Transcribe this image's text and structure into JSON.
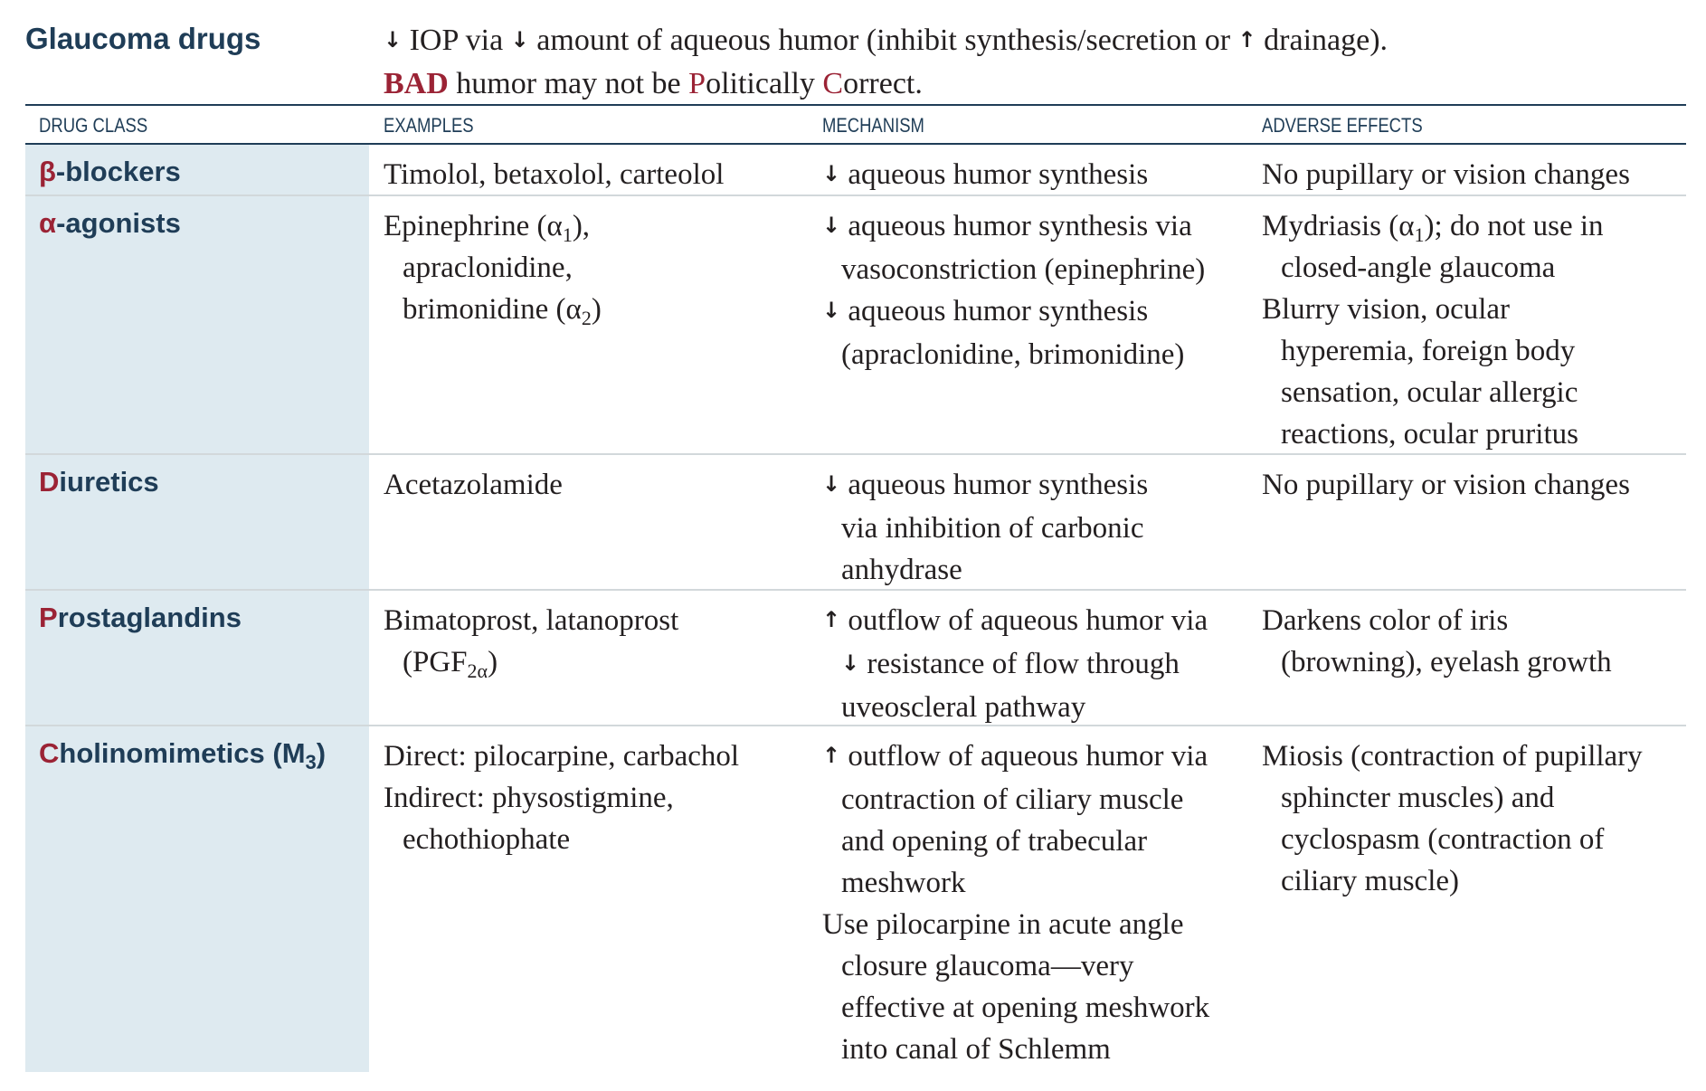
{
  "header": {
    "title": "Glaucoma drugs",
    "intro_line1": {
      "arrow_1": "↓",
      "text_1": " IOP via ",
      "arrow_2": "↓",
      "text_2": " amount of aqueous humor (inhibit synthesis/secretion or ",
      "arrow_3": "↑",
      "text_3": " drainage)."
    },
    "mnemonic": {
      "part1": "BAD",
      "part2": " humor may not be ",
      "part3": "P",
      "part4": "olitically ",
      "part5": "C",
      "part6": "orrect."
    }
  },
  "table": {
    "headers": {
      "drug_class": "DRUG CLASS",
      "examples": "EXAMPLES",
      "mechanism": "MECHANISM",
      "adverse_effects": "ADVERSE EFFECTS"
    },
    "rows": [
      {
        "cls": {
          "initial": "β",
          "rest": "-blockers"
        },
        "examples": {
          "l1": "Timolol, betaxolol, carteolol"
        },
        "mechanism": {
          "a1": "↓",
          "l1": " aqueous humor synthesis"
        },
        "adverse": {
          "l1": "No pupillary or vision changes"
        }
      },
      {
        "cls": {
          "initial": "α",
          "rest": "-agonists"
        },
        "examples": {
          "l1": "Epinephrine (α",
          "l1_sub": "1",
          "l1_end": "),",
          "l2": "apraclonidine,",
          "l3": "brimonidine  (α",
          "l3_sub": "2",
          "l3_end": ")"
        },
        "mechanism": {
          "a1": "↓",
          "l1": " aqueous humor synthesis via",
          "l2": "vasoconstriction (epinephrine)",
          "a3": "↓",
          "l3": " aqueous humor synthesis",
          "l4": "(apraclonidine, brimonidine)"
        },
        "adverse": {
          "l1": "Mydriasis (α",
          "l1_sub": "1",
          "l1_end": "); do not use in",
          "l2": "closed-angle glaucoma",
          "l3": "Blurry vision, ocular",
          "l4": "hyperemia, foreign body",
          "l5": "sensation, ocular allergic",
          "l6": "reactions, ocular pruritus"
        }
      },
      {
        "cls": {
          "initial": "D",
          "rest": "iuretics"
        },
        "examples": {
          "l1": "Acetazolamide"
        },
        "mechanism": {
          "a1": "↓",
          "l1": " aqueous humor synthesis",
          "l2": "via inhibition of carbonic",
          "l3": "anhydrase"
        },
        "adverse": {
          "l1": "No pupillary or vision changes"
        }
      },
      {
        "cls": {
          "initial": "P",
          "rest": "rostaglandins"
        },
        "examples": {
          "l1": "Bimatoprost, latanoprost",
          "l2": "(PGF",
          "l2_sub": "2α",
          "l2_end": ")"
        },
        "mechanism": {
          "a1": "↑",
          "l1": " outflow of aqueous humor via",
          "a2": "↓",
          "l2": " resistance of flow through",
          "l3": "uveoscleral pathway"
        },
        "adverse": {
          "l1": "Darkens color of iris",
          "l2": "(browning), eyelash growth"
        }
      },
      {
        "cls": {
          "initial": "C",
          "rest": "holinomimetics (M",
          "sub": "3",
          "end": ")"
        },
        "examples": {
          "l1": "Direct: pilocarpine, carbachol",
          "l2": "Indirect: physostigmine,",
          "l3": "echothiophate"
        },
        "mechanism": {
          "a1": "↑",
          "l1": " outflow of aqueous humor via",
          "l2": "contraction of ciliary muscle",
          "l3": "and opening of trabecular",
          "l4": "meshwork",
          "l5": "Use pilocarpine in acute angle",
          "l6": "closure glaucoma—very",
          "l7": "effective at opening meshwork",
          "l8": "into canal of Schlemm"
        },
        "adverse": {
          "l1": "Miosis (contraction of pupillary",
          "l2": "sphincter muscles) and",
          "l3": "cyclospasm (contraction of",
          "l4": "ciliary muscle)"
        }
      }
    ]
  },
  "colors": {
    "heading_navy": "#1f3d57",
    "accent_red": "#9b2335",
    "class_column_fill": "#deeaf0",
    "row_rule": "#d2d8db"
  }
}
